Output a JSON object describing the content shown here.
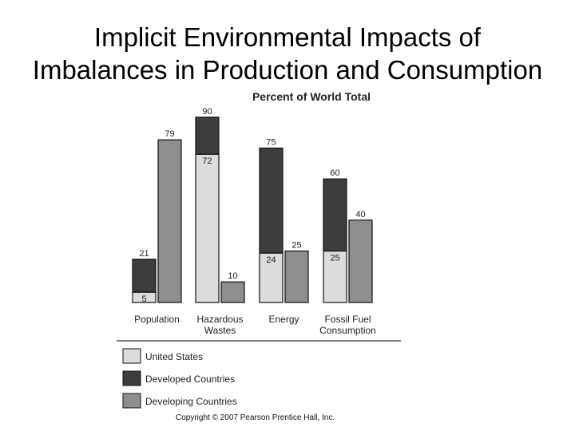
{
  "title_line1": "Implicit Environmental Impacts of",
  "title_line2": "Imbalances in Production and Consumption",
  "copyright": "Copyright © 2007 Pearson Prentice Hall, Inc.",
  "chart_data": {
    "type": "bar",
    "title": "Percent of World Total",
    "xlabel": "",
    "ylabel": "",
    "ylim": [
      0,
      100
    ],
    "grid": false,
    "legend_position": "bottom-left",
    "groups": [
      {
        "label_lines": [
          "Population"
        ],
        "bars": [
          {
            "stack": [
              {
                "series": "United States",
                "value": 5,
                "label": "5"
              },
              {
                "series": "Developed Countries",
                "value": 16,
                "label": "21"
              }
            ]
          },
          {
            "stack": [
              {
                "series": "Developing Countries",
                "value": 79,
                "label": "79"
              }
            ]
          }
        ]
      },
      {
        "label_lines": [
          "Hazardous",
          "Wastes"
        ],
        "bars": [
          {
            "stack": [
              {
                "series": "United States",
                "value": 72,
                "label": "72"
              },
              {
                "series": "Developed Countries",
                "value": 18,
                "label": "90"
              }
            ]
          },
          {
            "stack": [
              {
                "series": "Developing Countries",
                "value": 10,
                "label": "10"
              }
            ]
          }
        ]
      },
      {
        "label_lines": [
          "Energy"
        ],
        "bars": [
          {
            "stack": [
              {
                "series": "United States",
                "value": 24,
                "label": "24"
              },
              {
                "series": "Developed Countries",
                "value": 51,
                "label": "75"
              }
            ]
          },
          {
            "stack": [
              {
                "series": "Developing Countries",
                "value": 25,
                "label": "25"
              }
            ]
          }
        ]
      },
      {
        "label_lines": [
          "Fossil Fuel",
          "Consumption"
        ],
        "bars": [
          {
            "stack": [
              {
                "series": "United States",
                "value": 25,
                "label": "25"
              },
              {
                "series": "Developed Countries",
                "value": 35,
                "label": "60"
              }
            ]
          },
          {
            "stack": [
              {
                "series": "Developing Countries",
                "value": 40,
                "label": "40"
              }
            ]
          }
        ]
      }
    ],
    "legend": [
      {
        "name": "United States",
        "color": "#dcdcdc"
      },
      {
        "name": "Developed Countries",
        "color": "#3d3d3d"
      },
      {
        "name": "Developing Countries",
        "color": "#8e8e8e"
      }
    ]
  }
}
